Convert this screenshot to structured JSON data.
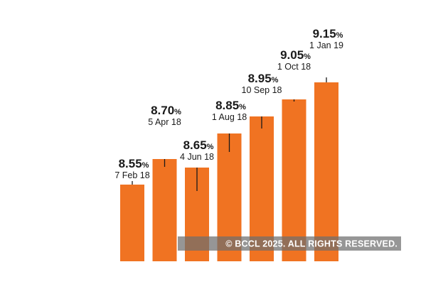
{
  "chart_data": {
    "type": "bar",
    "categories": [
      "7 Feb 18",
      "5 Apr 18",
      "4 Jun 18",
      "1 Aug 18",
      "10 Sep 18",
      "1 Oct 18",
      "1 Jan 19"
    ],
    "values": [
      8.55,
      8.7,
      8.65,
      8.85,
      8.95,
      9.05,
      9.15
    ],
    "value_labels": [
      "8.55",
      "8.70",
      "8.65",
      "8.85",
      "8.95",
      "9.05",
      "9.15"
    ],
    "unit": "%",
    "title": "",
    "xlabel": "",
    "ylabel": "",
    "ylim": [
      8.1,
      9.15
    ],
    "grid": false,
    "legend": "none",
    "bar_color": "#f07322"
  },
  "watermark": {
    "text": "© BCCL 2025. ALL RIGHTS RESERVED."
  }
}
